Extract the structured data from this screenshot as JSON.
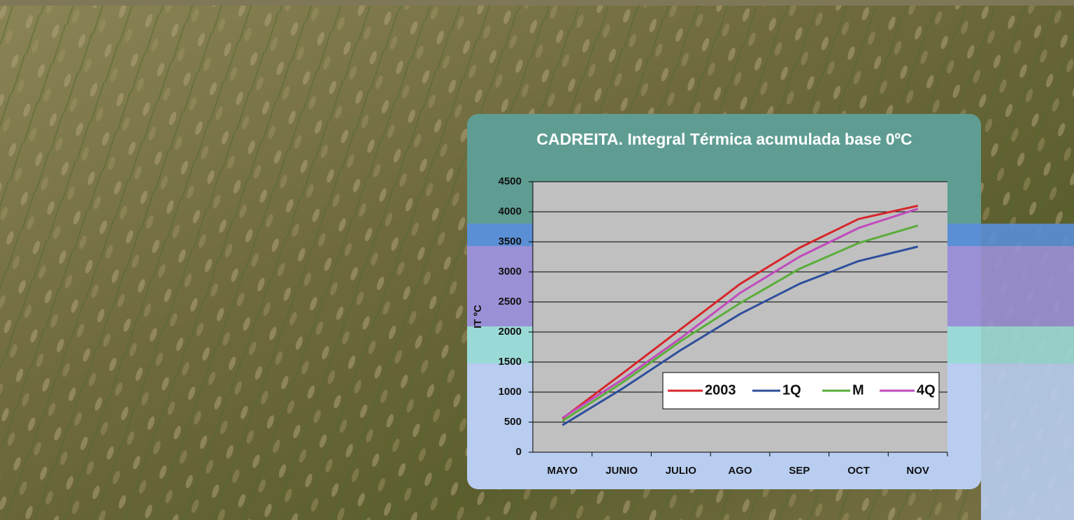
{
  "chart_data": {
    "type": "line",
    "title": "CADREITA. Integral Térmica acumulada base 0ºC",
    "y_label": "IT ºC",
    "categories": [
      "MAYO",
      "JUNIO",
      "JULIO",
      "AGO",
      "SEP",
      "OCT",
      "NOV"
    ],
    "series": [
      {
        "name": "2003",
        "color": "#d7262b",
        "values": [
          560,
          1300,
          2050,
          2800,
          3400,
          3880,
          4100
        ]
      },
      {
        "name": "1Q",
        "color": "#2e4f9c",
        "values": [
          450,
          1050,
          1700,
          2300,
          2800,
          3180,
          3420
        ]
      },
      {
        "name": "M",
        "color": "#5aad3a",
        "values": [
          520,
          1150,
          1850,
          2480,
          3050,
          3480,
          3770
        ]
      },
      {
        "name": "4Q",
        "color": "#c04bbd",
        "values": [
          570,
          1200,
          1900,
          2650,
          3250,
          3730,
          4050
        ]
      }
    ],
    "ylim": [
      0,
      4500
    ],
    "yticks": [
      0,
      500,
      1000,
      1500,
      2000,
      2500,
      3000,
      3500,
      4000,
      4500
    ],
    "grid": true
  }
}
